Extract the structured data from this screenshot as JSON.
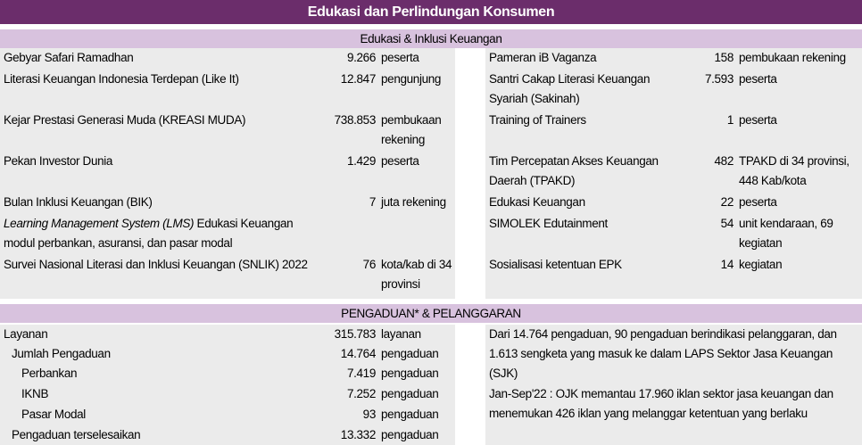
{
  "title": "Edukasi dan Perlindungan Konsumen",
  "edukasi": {
    "header": "Edukasi & Inklusi Keuangan",
    "left": [
      {
        "name": "Gebyar Safari Ramadhan",
        "value": "9.266",
        "unit": "peserta"
      },
      {
        "name": "Literasi Keuangan Indonesia Terdepan (Like It)",
        "value": "12.847",
        "unit": "pengunjung"
      },
      {
        "name": "Kejar Prestasi Generasi Muda (KREASI MUDA)",
        "value": "738.853",
        "unit": "pembukaan rekening"
      },
      {
        "name": "Pekan Investor Dunia",
        "value": "1.429",
        "unit": "peserta"
      },
      {
        "name": "Bulan Inklusi Keuangan (BIK)",
        "value": "7",
        "unit": "juta rekening"
      },
      {
        "name_italic": "Learning Management System (LMS)",
        "name": " Edukasi Keuangan modul perbankan, asuransi, dan pasar modal",
        "value": "",
        "unit": ""
      },
      {
        "name": "Survei Nasional Literasi dan Inklusi Keuangan (SNLIK) 2022",
        "value": "76",
        "unit": "kota/kab di 34 provinsi"
      }
    ],
    "right": [
      {
        "name": "Pameran iB Vaganza",
        "value": "158",
        "unit": "pembukaan rekening"
      },
      {
        "name": "Santri Cakap Literasi Keuangan Syariah (Sakinah)",
        "value": "7.593",
        "unit": "peserta"
      },
      {
        "name": "Training of Trainers",
        "value": "1",
        "unit": "peserta"
      },
      {
        "name": "Tim Percepatan Akses Keuangan Daerah (TPAKD)",
        "value": "482",
        "unit": "TPAKD di 34 provinsi, 448 Kab/kota"
      },
      {
        "name": "Edukasi Keuangan",
        "value": "22",
        "unit": "peserta"
      },
      {
        "name": "SIMOLEK Edutainment",
        "value": "54",
        "unit": "unit kendaraan, 69 kegiatan"
      },
      {
        "name": "Sosialisasi ketentuan EPK",
        "value": "14",
        "unit": "kegiatan"
      }
    ]
  },
  "pengaduan": {
    "header": "PENGADUAN* & PELANGGARAN",
    "rows": [
      {
        "label": "Layanan",
        "value": "315.783",
        "unit": "layanan"
      },
      {
        "label": "Jumlah Pengaduan",
        "value": "14.764",
        "unit": "pengaduan"
      },
      {
        "label": "Perbankan",
        "value": "7.419",
        "unit": "pengaduan"
      },
      {
        "label": "IKNB",
        "value": "7.252",
        "unit": "pengaduan"
      },
      {
        "label": "Pasar Modal",
        "value": "93",
        "unit": "pengaduan"
      },
      {
        "label": "Pengaduan terselesaikan",
        "value": "13.332",
        "unit": "pengaduan"
      }
    ],
    "note1": "Dari 14.764 pengaduan, 90 pengaduan berindikasi pelanggaran, dan 1.613 sengketa yang masuk ke dalam LAPS Sektor Jasa Keuangan (SJK)",
    "note2": "Jan-Sep'22 : OJK memantau 17.960 iklan sektor jasa keuangan dan menemukan 426 iklan yang melanggar ketentuan yang berlaku"
  },
  "colors": {
    "title_bg": "#6b2d6b",
    "section_bg": "#d8c2de",
    "panel_bg": "#ebebeb"
  }
}
